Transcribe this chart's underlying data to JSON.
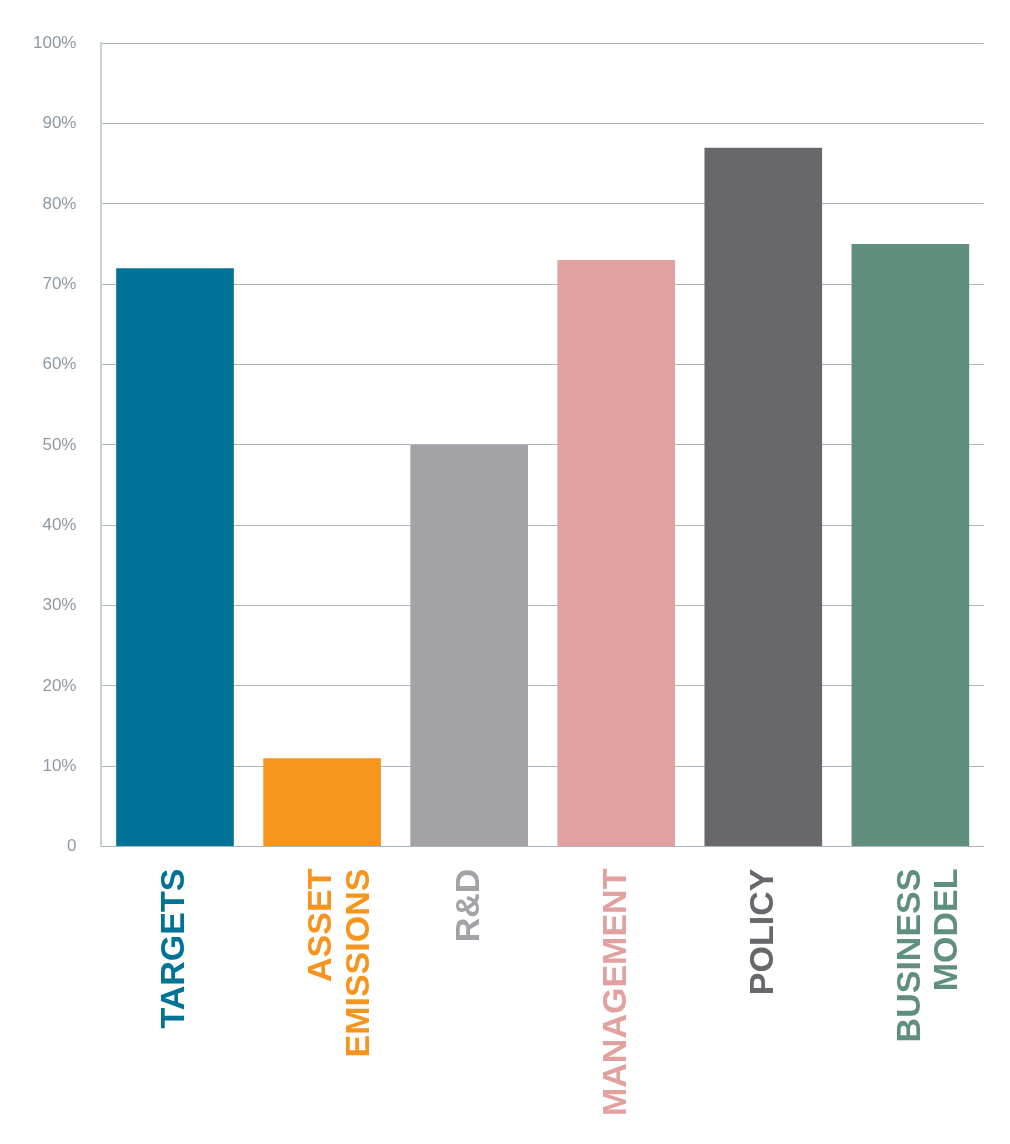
{
  "chart_data": {
    "type": "bar",
    "categories": [
      "TARGETS",
      "ASSET EMISSIONS",
      "R&D",
      "MANAGEMENT",
      "POLICY",
      "BUSINESS MODEL"
    ],
    "values": [
      72,
      11,
      50,
      73,
      87,
      75
    ],
    "colors": [
      "#007396",
      "#f7941e",
      "#a3a2a6",
      "#e0a19f",
      "#68676b",
      "#618f7e"
    ],
    "ylim": [
      0,
      100
    ],
    "yticks": [
      {
        "value": 0,
        "label": "0"
      },
      {
        "value": 10,
        "label": "10%"
      },
      {
        "value": 20,
        "label": "20%"
      },
      {
        "value": 30,
        "label": "30%"
      },
      {
        "value": 40,
        "label": "40%"
      },
      {
        "value": 50,
        "label": "50%"
      },
      {
        "value": 60,
        "label": "60%"
      },
      {
        "value": 70,
        "label": "70%"
      },
      {
        "value": 80,
        "label": "80%"
      },
      {
        "value": 90,
        "label": "90%"
      },
      {
        "value": 100,
        "label": "100%"
      }
    ],
    "grid": "y",
    "legend": false
  }
}
